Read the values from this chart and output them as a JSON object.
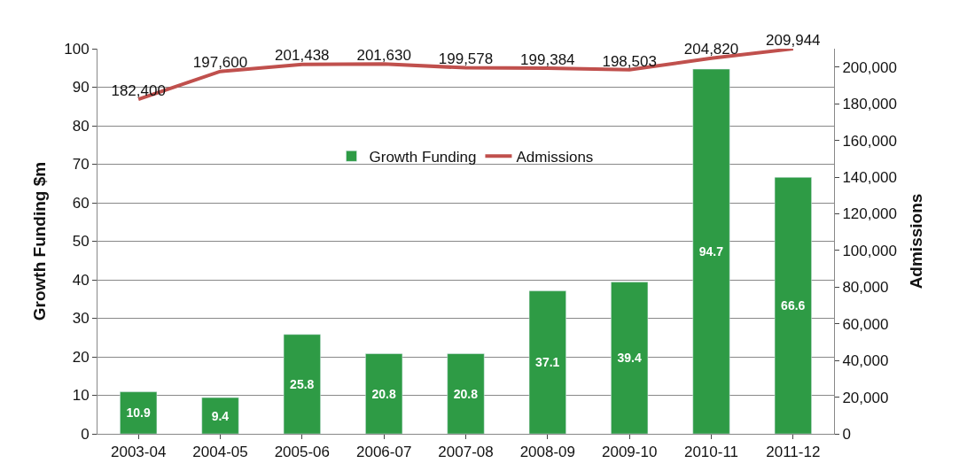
{
  "chart_data": {
    "type": "bar",
    "ylabel": "Growth Funding $m",
    "y2label": "Admissions",
    "categories": [
      "2003-04",
      "2004-05",
      "2005-06",
      "2006-07",
      "2007-08",
      "2008-09",
      "2009-10",
      "2010-11",
      "2011-12"
    ],
    "series": [
      {
        "name": "Growth Funding",
        "color": "#2e9b45",
        "values": [
          10.9,
          9.4,
          25.8,
          20.8,
          20.8,
          37.1,
          39.4,
          94.7,
          66.6
        ]
      },
      {
        "name": "Admissions",
        "type": "line",
        "axis": "y2",
        "color": "#c0504d",
        "values": [
          182400,
          197600,
          201438,
          201630,
          199578,
          199384,
          198503,
          204820,
          209944
        ],
        "value_labels": [
          "182,400",
          "197,600",
          "201,438",
          "201,630",
          "199,578",
          "199,384",
          "198,503",
          "204,820",
          "209,944"
        ]
      }
    ],
    "ylim": [
      0,
      100
    ],
    "yticks": [
      0,
      10,
      20,
      30,
      40,
      50,
      60,
      70,
      80,
      90,
      100
    ],
    "y2lim": [
      0,
      210000
    ],
    "y2ticks": [
      {
        "value": 0,
        "label": "0"
      },
      {
        "value": 20000,
        "label": "20,000"
      },
      {
        "value": 40000,
        "label": "40,000"
      },
      {
        "value": 60000,
        "label": "60,000"
      },
      {
        "value": 80000,
        "label": "80,000"
      },
      {
        "value": 100000,
        "label": "100,000"
      },
      {
        "value": 120000,
        "label": "120,000"
      },
      {
        "value": 140000,
        "label": "140,000"
      },
      {
        "value": 160000,
        "label": "160,000"
      },
      {
        "value": 180000,
        "label": "180,000"
      },
      {
        "value": 200000,
        "label": "200,000"
      }
    ],
    "data_labels": true,
    "grid": "y",
    "legend": "top",
    "marker": "none",
    "line_style": "solid"
  }
}
